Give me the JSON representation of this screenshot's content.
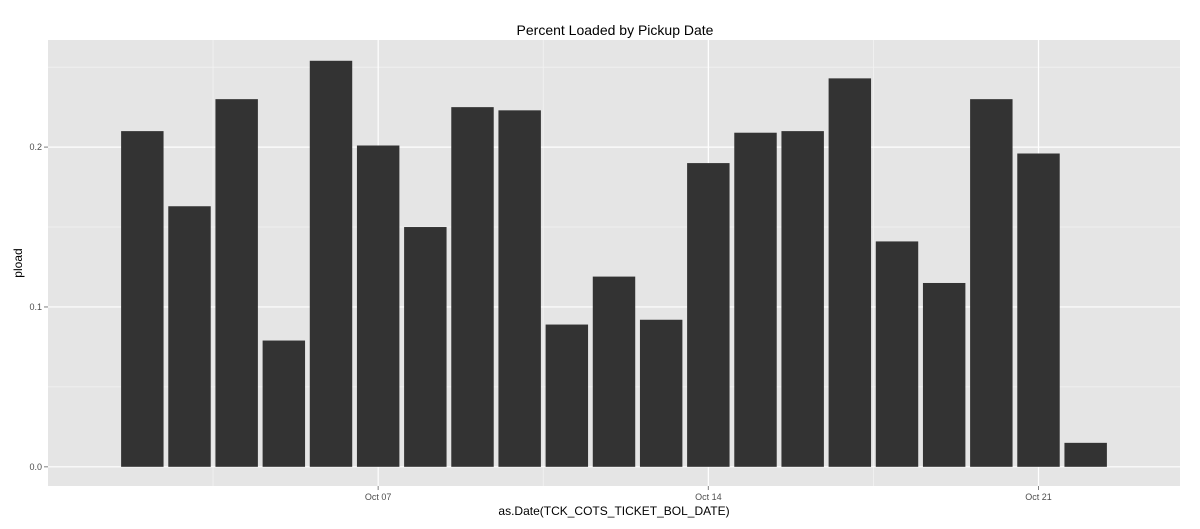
{
  "chart_data": {
    "type": "bar",
    "title": "Percent Loaded by Pickup Date",
    "xlabel": "as.Date(TCK_COTS_TICKET_BOL_DATE)",
    "ylabel": "pload",
    "x": [
      "2012-10-02",
      "2012-10-03",
      "2012-10-04",
      "2012-10-05",
      "2012-10-06",
      "2012-10-07",
      "2012-10-08",
      "2012-10-09",
      "2012-10-10",
      "2012-10-11",
      "2012-10-12",
      "2012-10-13",
      "2012-10-14",
      "2012-10-15",
      "2012-10-16",
      "2012-10-17",
      "2012-10-18",
      "2012-10-19",
      "2012-10-20",
      "2012-10-21",
      "2012-10-22"
    ],
    "values": [
      0.21,
      0.163,
      0.23,
      0.079,
      0.254,
      0.201,
      0.15,
      0.225,
      0.223,
      0.089,
      0.119,
      0.092,
      0.19,
      0.209,
      0.21,
      0.243,
      0.141,
      0.115,
      0.23,
      0.196,
      0.015
    ],
    "x_ticks": [
      {
        "date": "2012-10-07",
        "label": "Oct 07"
      },
      {
        "date": "2012-10-14",
        "label": "Oct 14"
      },
      {
        "date": "2012-10-21",
        "label": "Oct 21"
      }
    ],
    "y_ticks": [
      {
        "value": 0.0,
        "label": "0.0"
      },
      {
        "value": 0.1,
        "label": "0.1"
      },
      {
        "value": 0.2,
        "label": "0.2"
      }
    ],
    "xlim": [
      "2012-09-30",
      "2012-10-24"
    ],
    "ylim": [
      -0.012,
      0.267
    ],
    "grid": true,
    "legend": "none",
    "colors": {
      "bar": "#333333",
      "panel": "#e5e5e5",
      "grid_major": "#ffffff",
      "grid_minor": "#f2f2f2",
      "tick_label": "#4d4d4d"
    }
  }
}
